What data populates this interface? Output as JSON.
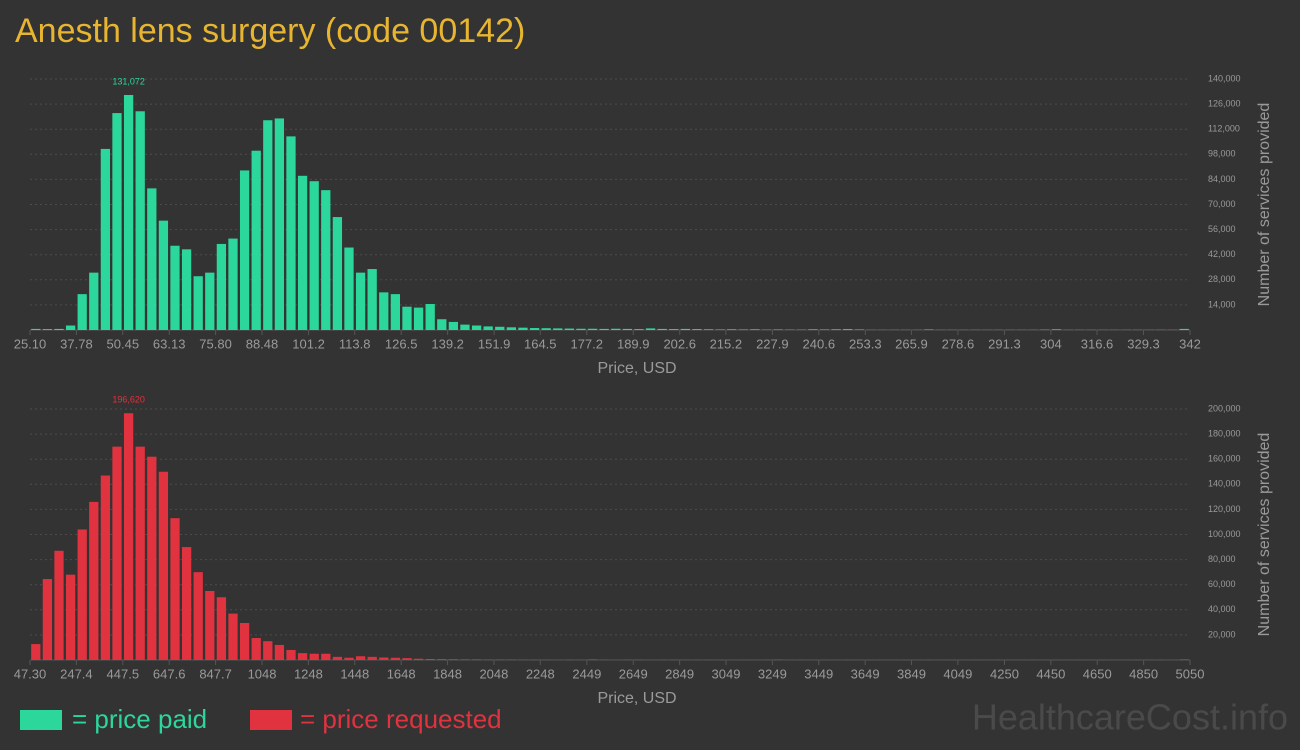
{
  "title": "Anesth lens surgery (code 00142)",
  "watermark": "HealthcareCost.info",
  "chart_data": [
    {
      "type": "histogram",
      "xlabel": "Price, USD",
      "ylabel": "Number of services provided",
      "bins": [
        25.1,
        28.27,
        31.44,
        34.61,
        37.78,
        40.94,
        44.11,
        47.28,
        50.45,
        53.62,
        56.79,
        59.96,
        63.13,
        66.29,
        69.46,
        72.63,
        75.8,
        78.97,
        82.14,
        85.31,
        88.48,
        91.64,
        94.81,
        97.98,
        101.15,
        104.32,
        107.49,
        110.66,
        113.83,
        116.99,
        120.16,
        123.33,
        126.5,
        129.67,
        132.84,
        136.01,
        139.18,
        142.34,
        145.51,
        148.68,
        151.85,
        155.02,
        158.19,
        161.36,
        164.53,
        167.69,
        170.86,
        174.03,
        177.2,
        180.37,
        183.54,
        186.71,
        189.88,
        193.04,
        196.21,
        199.38,
        202.55,
        205.72,
        208.89,
        212.06,
        215.23,
        218.39,
        221.56,
        224.73,
        227.9,
        231.07,
        234.24,
        237.41,
        240.58,
        243.74,
        246.91,
        250.08,
        253.25,
        256.42,
        259.59,
        262.76,
        265.93,
        269.09,
        272.26,
        275.43,
        278.6,
        281.77,
        284.94,
        288.11,
        291.28,
        294.44,
        297.61,
        300.78,
        303.95,
        307.12,
        310.29,
        313.46,
        316.63,
        319.79,
        322.96,
        326.13,
        329.3,
        332.47,
        335.64,
        338.81,
        342
      ],
      "series": [
        {
          "name": "= price paid",
          "color": "#2bd79b",
          "values": [
            600,
            500,
            600,
            2500,
            20000,
            32000,
            101000,
            121000,
            131072,
            122000,
            79000,
            61000,
            47000,
            45000,
            30000,
            32000,
            48000,
            51000,
            89000,
            100000,
            117000,
            118000,
            108000,
            86000,
            83000,
            78000,
            63000,
            46000,
            32000,
            34000,
            21000,
            20000,
            13000,
            12500,
            14500,
            6000,
            4500,
            3000,
            2500,
            2000,
            1800,
            1500,
            1300,
            1100,
            1000,
            900,
            800,
            700,
            700,
            600,
            700,
            600,
            500,
            900,
            600,
            500,
            600,
            500,
            400,
            300,
            400,
            300,
            400,
            200,
            300,
            200,
            200,
            400,
            300,
            400,
            500,
            300,
            100,
            100,
            100,
            100,
            100,
            300,
            100,
            100,
            100,
            100,
            100,
            100,
            100,
            100,
            100,
            200,
            400,
            100,
            100,
            100,
            100,
            100,
            100,
            100,
            100,
            100,
            100,
            600
          ],
          "value_labels": [
            null,
            null,
            null,
            null,
            null,
            null,
            null,
            null,
            "131,072",
            null,
            null,
            null,
            null,
            null,
            null,
            null,
            null,
            null,
            null,
            null,
            null,
            null,
            null,
            null,
            null,
            null,
            null,
            null,
            null,
            null,
            null,
            null,
            null,
            null,
            null,
            null,
            null,
            null,
            null,
            null,
            null,
            null,
            null,
            null,
            null,
            null,
            null,
            null,
            null,
            null,
            null,
            null,
            null,
            null,
            null,
            null,
            null,
            null,
            null,
            null,
            null,
            null,
            null,
            null,
            null,
            null,
            null,
            null,
            null,
            null,
            null,
            null,
            null,
            null,
            null,
            null,
            null,
            null,
            null,
            null,
            null,
            null,
            null,
            null,
            null,
            null,
            null,
            null,
            null,
            null,
            null,
            null,
            null,
            null,
            null,
            null,
            null,
            null,
            null,
            null
          ]
        }
      ],
      "xlim": [
        25.1,
        342
      ],
      "xticks": [
        {
          "value": 25.1,
          "label": "25.10"
        },
        37.78,
        50.45,
        63.13,
        {
          "value": 75.8,
          "label": "75.80"
        },
        88.48,
        101.2,
        113.8,
        126.5,
        139.2,
        151.9,
        164.5,
        177.2,
        189.9,
        202.6,
        215.2,
        227.9,
        240.6,
        253.3,
        265.9,
        278.6,
        291.3,
        304,
        316.6,
        329.3,
        342
      ],
      "ylim": [
        0,
        140000
      ],
      "yticks": [
        {
          "value": 14000,
          "label": "14,000"
        },
        {
          "value": 28000,
          "label": "28,000"
        },
        {
          "value": 42000,
          "label": "42,000"
        },
        {
          "value": 56000,
          "label": "56,000"
        },
        {
          "value": 70000,
          "label": "70,000"
        },
        {
          "value": 84000,
          "label": "84,000"
        },
        {
          "value": 98000,
          "label": "98,000"
        },
        {
          "value": 112000,
          "label": "112,000"
        },
        {
          "value": 126000,
          "label": "126,000"
        },
        {
          "value": 140000,
          "label": "140,000"
        }
      ],
      "grid": true
    },
    {
      "type": "histogram",
      "xlabel": "Price, USD",
      "ylabel": "Number of services provided",
      "bins": [
        47.3,
        97.3,
        147.4,
        197.4,
        247.4,
        297.4,
        347.5,
        397.5,
        447.5,
        497.5,
        547.6,
        597.6,
        647.6,
        697.7,
        747.7,
        797.7,
        847.7,
        897.8,
        947.8,
        997.8,
        1047.8,
        1097.9,
        1147.9,
        1197.9,
        1248.0,
        1298.0,
        1348.0,
        1398.0,
        1448.1,
        1498.1,
        1548.1,
        1598.1,
        1648.2,
        1698.2,
        1748.2,
        1798.2,
        1848.3,
        1898.3,
        1948.3,
        1998.4,
        2048.4,
        2098.4,
        2148.4,
        2198.5,
        2248.5,
        2298.5,
        2348.5,
        2398.6,
        2448.6,
        2498.6,
        2548.7,
        2598.7,
        2648.7,
        2698.7,
        2748.8,
        2798.8,
        2848.8,
        2898.8,
        2948.9,
        2998.9,
        3048.9,
        3098.9,
        3149.0,
        3199.0,
        3249.0,
        3299.1,
        3349.1,
        3399.1,
        3449.1,
        3499.2,
        3549.2,
        3599.2,
        3649.2,
        3699.3,
        3749.3,
        3799.3,
        3849.4,
        3899.4,
        3949.4,
        3999.4,
        4049.5,
        4099.5,
        4149.5,
        4199.5,
        4249.6,
        4299.6,
        4349.6,
        4399.6,
        4449.7,
        4499.7,
        4549.7,
        4599.8,
        4649.8,
        4699.8,
        4749.8,
        4799.9,
        4849.9,
        4899.9,
        4949.9,
        5000.0,
        5050
      ],
      "series": [
        {
          "name": "= price requested",
          "color": "#e0323f",
          "values": [
            12700,
            64500,
            87000,
            68000,
            104000,
            126000,
            147000,
            170000,
            196620,
            170000,
            162000,
            150000,
            113000,
            90000,
            70000,
            55000,
            50000,
            37000,
            29500,
            17500,
            15000,
            12000,
            8000,
            5500,
            5000,
            5000,
            2500,
            1800,
            3000,
            2500,
            2000,
            1800,
            1500,
            1000,
            800,
            700,
            600,
            500,
            500,
            400,
            400,
            400,
            300,
            300,
            300,
            200,
            300,
            200,
            500,
            300,
            200,
            300,
            300,
            200,
            200,
            300,
            200,
            200,
            200,
            200,
            100,
            100,
            100,
            100,
            400,
            100,
            100,
            100,
            100,
            100,
            100,
            100,
            100,
            100,
            100,
            100,
            100,
            100,
            100,
            100,
            100,
            100,
            100,
            100,
            100,
            100,
            100,
            100,
            100,
            100,
            100,
            100,
            100,
            100,
            100,
            100,
            100,
            100,
            100,
            500
          ],
          "value_labels": [
            null,
            null,
            null,
            null,
            null,
            null,
            null,
            null,
            "196,620",
            null,
            null,
            null,
            null,
            null,
            null,
            null,
            null,
            null,
            null,
            null,
            null,
            null,
            null,
            null,
            null,
            null,
            null,
            null,
            null,
            null,
            null,
            null,
            null,
            null,
            null,
            null,
            null,
            null,
            null,
            null,
            null,
            null,
            null,
            null,
            null,
            null,
            null,
            null,
            null,
            null,
            null,
            null,
            null,
            null,
            null,
            null,
            null,
            null,
            null,
            null,
            null,
            null,
            null,
            null,
            null,
            null,
            null,
            null,
            null,
            null,
            null,
            null,
            null,
            null,
            null,
            null,
            null,
            null,
            null,
            null,
            null,
            null,
            null,
            null,
            null,
            null,
            null,
            null,
            null,
            null,
            null,
            null,
            null,
            null,
            null,
            null,
            null,
            null,
            null,
            null
          ]
        }
      ],
      "xlim": [
        47.3,
        5050
      ],
      "xticks": [
        {
          "value": 47.3,
          "label": "47.30"
        },
        247.4,
        447.5,
        647.6,
        847.7,
        1048,
        1248,
        1448,
        1648,
        1848,
        2048,
        2248,
        2449,
        2649,
        2849,
        3049,
        3249,
        3449,
        3649,
        3849,
        4049,
        4250,
        4450,
        4650,
        4850,
        5050
      ],
      "ylim": [
        0,
        200000
      ],
      "yticks": [
        {
          "value": 20000,
          "label": "20,000"
        },
        {
          "value": 40000,
          "label": "40,000"
        },
        {
          "value": 60000,
          "label": "60,000"
        },
        {
          "value": 80000,
          "label": "80,000"
        },
        {
          "value": 100000,
          "label": "100,000"
        },
        {
          "value": 120000,
          "label": "120,000"
        },
        {
          "value": 140000,
          "label": "140,000"
        },
        {
          "value": 160000,
          "label": "160,000"
        },
        {
          "value": 180000,
          "label": "180,000"
        },
        {
          "value": 200000,
          "label": "200,000"
        }
      ],
      "grid": true
    }
  ]
}
